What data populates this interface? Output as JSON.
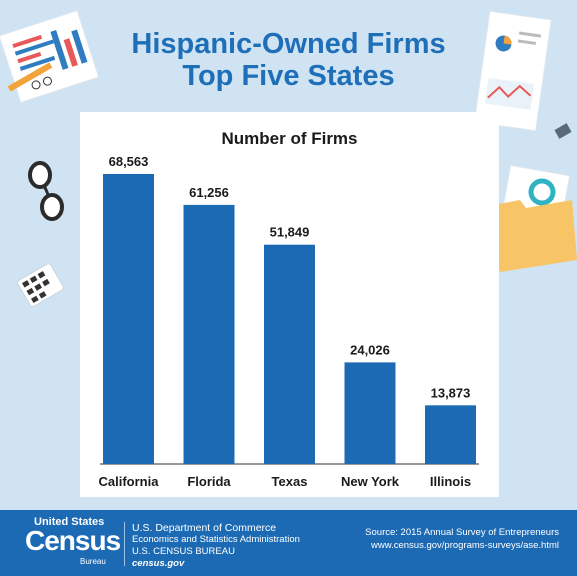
{
  "header": {
    "title_line1": "Hispanic-Owned Firms",
    "title_line2": "Top Five States"
  },
  "chart_data": {
    "type": "bar",
    "title": "Number of Firms",
    "categories": [
      "California",
      "Florida",
      "Texas",
      "New York",
      "Illinois"
    ],
    "values": [
      68563,
      61256,
      51849,
      24026,
      13873
    ],
    "data_labels": [
      "68,563",
      "61,256",
      "51,849",
      "24,026",
      "13,873"
    ],
    "xlabel": "",
    "ylabel": "",
    "ylim": [
      0,
      80000
    ],
    "grid": false,
    "bar_color": "#1d6ab4"
  },
  "footer": {
    "logo_top": "United States",
    "logo_tm": "®",
    "logo_main": "Census",
    "logo_bottom": "Bureau",
    "dept_line1": "U.S. Department of Commerce",
    "dept_line2": "Economics and Statistics Administration",
    "dept_line3": "U.S. CENSUS BUREAU",
    "dept_line4": "census.gov",
    "source_line1": "Source: 2015 Annual Survey of Entrepreneurs",
    "source_line2": "www.census.gov/programs-surveys/ase.html"
  },
  "colors": {
    "background": "#cfe3f2",
    "title": "#1f6fb8",
    "footer": "#1d6ab4"
  }
}
